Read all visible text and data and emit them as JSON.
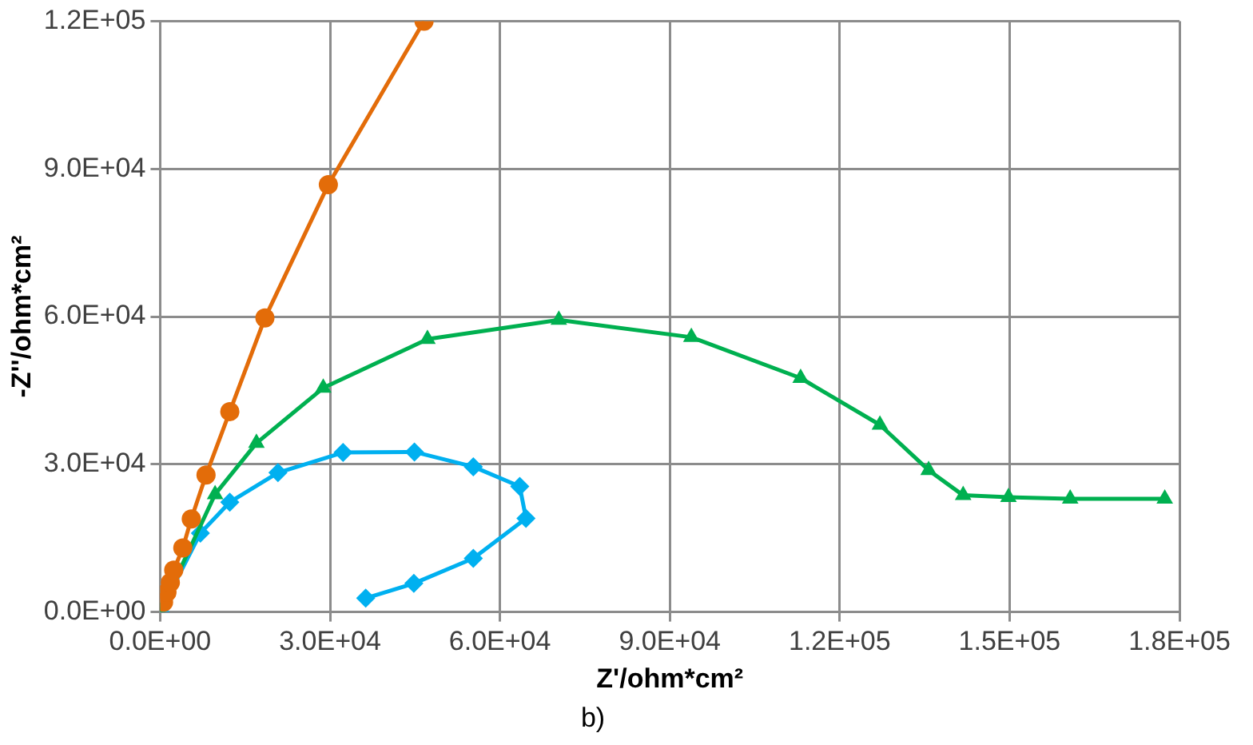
{
  "chart_data": {
    "type": "scatter",
    "xlabel": "Z'/ohm*cm²",
    "ylabel": "-Z''/ohm*cm²",
    "annotations": [
      "b)"
    ],
    "xlim": [
      0,
      180000
    ],
    "ylim": [
      0,
      120000
    ],
    "xticks": [
      {
        "value": 0,
        "label": "0.0E+00"
      },
      {
        "value": 30000,
        "label": "3.0E+04"
      },
      {
        "value": 60000,
        "label": "6.0E+04"
      },
      {
        "value": 90000,
        "label": "9.0E+04"
      },
      {
        "value": 120000,
        "label": "1.2E+05"
      },
      {
        "value": 150000,
        "label": "1.5E+05"
      },
      {
        "value": 180000,
        "label": "1.8E+05"
      }
    ],
    "yticks": [
      {
        "value": 0,
        "label": "0.0E+00"
      },
      {
        "value": 30000,
        "label": "3.0E+04"
      },
      {
        "value": 60000,
        "label": "6.0E+04"
      },
      {
        "value": 90000,
        "label": "9.0E+04"
      },
      {
        "value": 120000,
        "label": "1.2E+05"
      }
    ],
    "grid": true,
    "legend": false,
    "line_style": "solid",
    "series": [
      {
        "type": "line",
        "marker": "circle",
        "color": "#e36c09",
        "x": [
          600,
          1200,
          1800,
          2400,
          4000,
          5500,
          8100,
          12300,
          18500,
          29700,
          46600
        ],
        "values": [
          2000,
          4000,
          6000,
          8500,
          13000,
          18900,
          27800,
          40700,
          59700,
          86800,
          120000
        ]
      },
      {
        "type": "line",
        "marker": "triangle",
        "color": "#00b050",
        "x": [
          0,
          9700,
          17000,
          28800,
          47200,
          70400,
          93800,
          113100,
          127100,
          135700,
          141800,
          149800,
          160700,
          177400
        ],
        "values": [
          0,
          23900,
          34300,
          45500,
          55400,
          59300,
          55800,
          47500,
          38000,
          28800,
          23700,
          23300,
          23000,
          23000
        ]
      },
      {
        "type": "line",
        "marker": "diamond",
        "color": "#00b0f0",
        "x": [
          0,
          7100,
          12300,
          20800,
          32300,
          44900,
          55300,
          63500,
          64600,
          55300,
          44800,
          36300
        ],
        "values": [
          0,
          16000,
          22300,
          28300,
          32400,
          32500,
          29500,
          25500,
          19000,
          10900,
          5800,
          2800
        ]
      }
    ]
  }
}
